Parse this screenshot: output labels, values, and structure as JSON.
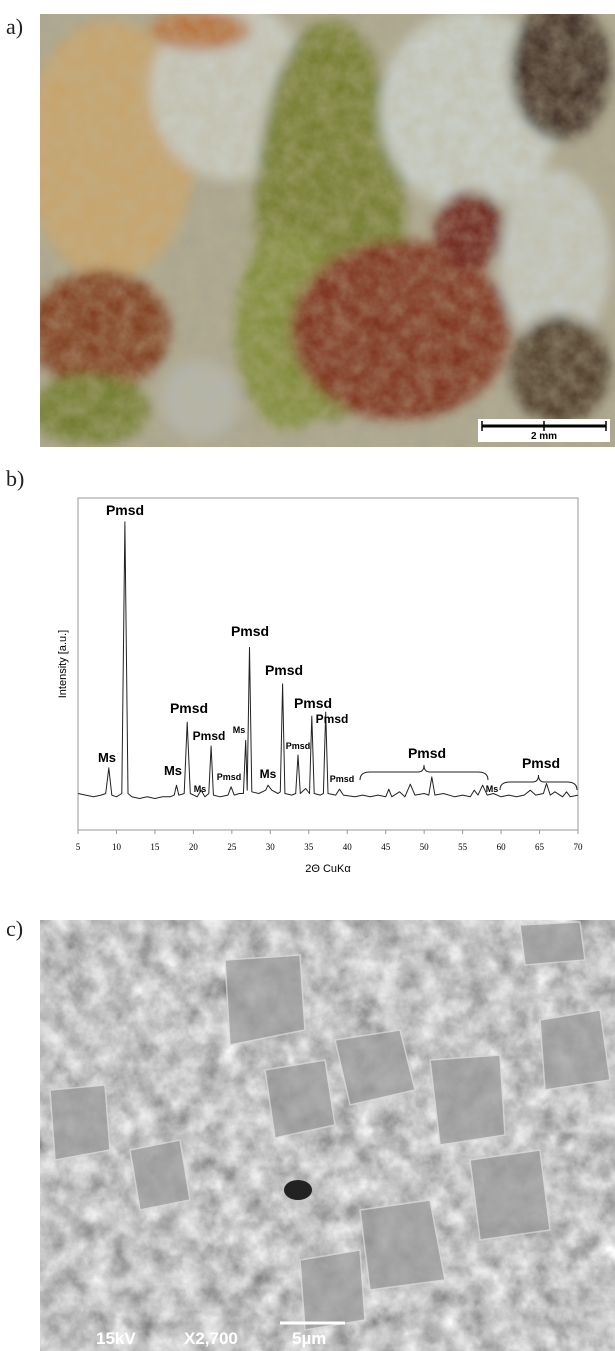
{
  "panels": {
    "a": {
      "label": "a)",
      "scale_bar": "2 mm"
    },
    "b": {
      "label": "b)"
    },
    "c": {
      "label": "c)",
      "voltage": "15kV",
      "magnification": "X2,700",
      "scale_bar": "5µm"
    }
  },
  "chart_data": {
    "type": "line",
    "x_label": "2Θ CuKα",
    "y_label": "Intensity [a.u.]",
    "color": "#222222",
    "x": [
      5,
      6,
      7,
      8,
      8.6,
      9,
      9.4,
      10,
      10.7,
      11.1,
      11.5,
      12,
      13,
      14,
      15,
      16,
      17,
      17.5,
      17.8,
      18.1,
      18.8,
      19.2,
      19.6,
      20.5,
      21,
      21.5,
      22,
      22.3,
      22.6,
      23.5,
      24.5,
      24.9,
      25.3,
      26,
      26.5,
      26.8,
      27,
      27.3,
      27.6,
      28.5,
      29.4,
      29.7,
      30.2,
      31,
      31.3,
      31.6,
      31.9,
      32.8,
      33.3,
      33.6,
      33.9,
      34.6,
      35.1,
      35.4,
      35.7,
      36.5,
      36.9,
      37.2,
      37.5,
      38.5,
      39,
      39.5,
      41,
      42,
      43,
      44,
      45,
      45.4,
      45.8,
      46.8,
      47.5,
      48.2,
      48.8,
      50,
      50.6,
      51,
      51.4,
      52.5,
      54,
      55,
      56,
      56.5,
      57,
      57.6,
      58.2,
      59,
      60,
      61,
      62,
      63,
      63.8,
      64.5,
      65.5,
      65.9,
      66.4,
      67,
      68,
      68.5,
      69,
      70
    ],
    "values": [
      11,
      10.5,
      10,
      10.5,
      11,
      18.7,
      10.5,
      10,
      11,
      92.8,
      11,
      10,
      9.5,
      10,
      9.5,
      10,
      10,
      10.5,
      13.5,
      10.5,
      11,
      32.5,
      11,
      10,
      12,
      10,
      11,
      25.3,
      10.5,
      10,
      10.5,
      13,
      10.5,
      11,
      11,
      27,
      12,
      55,
      11.5,
      11,
      12,
      13.5,
      12,
      11,
      11.5,
      44,
      11,
      10.5,
      11,
      22.6,
      11,
      12.5,
      11,
      34.3,
      11,
      10.5,
      11,
      35.5,
      11,
      10.5,
      12.3,
      10.5,
      10,
      10.5,
      10,
      10.5,
      10,
      12.3,
      10,
      11.5,
      10,
      13.8,
      10.5,
      11,
      10.5,
      16,
      10.5,
      11,
      10,
      10.5,
      10,
      12,
      10.5,
      13.5,
      10.5,
      11,
      10,
      10.5,
      10,
      10.5,
      12,
      10.5,
      11,
      14,
      10.5,
      11.5,
      10,
      11.5,
      10,
      10.5
    ],
    "xlim": [
      5,
      70
    ],
    "ylim": [
      0,
      100
    ],
    "xticks": [
      5,
      10,
      15,
      20,
      25,
      30,
      35,
      40,
      45,
      50,
      55,
      60,
      65,
      70
    ],
    "annotations": [
      "Pmsd",
      "Ms",
      "Ms",
      "Pmsd",
      "Ms",
      "Pmsd",
      "Pmsd",
      "Ms",
      "Pmsd",
      "Ms",
      "Pmsd",
      "Pmsd",
      "Pmsd",
      "Pmsd",
      "Pmsd",
      "Pmsd",
      "Ms",
      "Pmsd"
    ]
  }
}
